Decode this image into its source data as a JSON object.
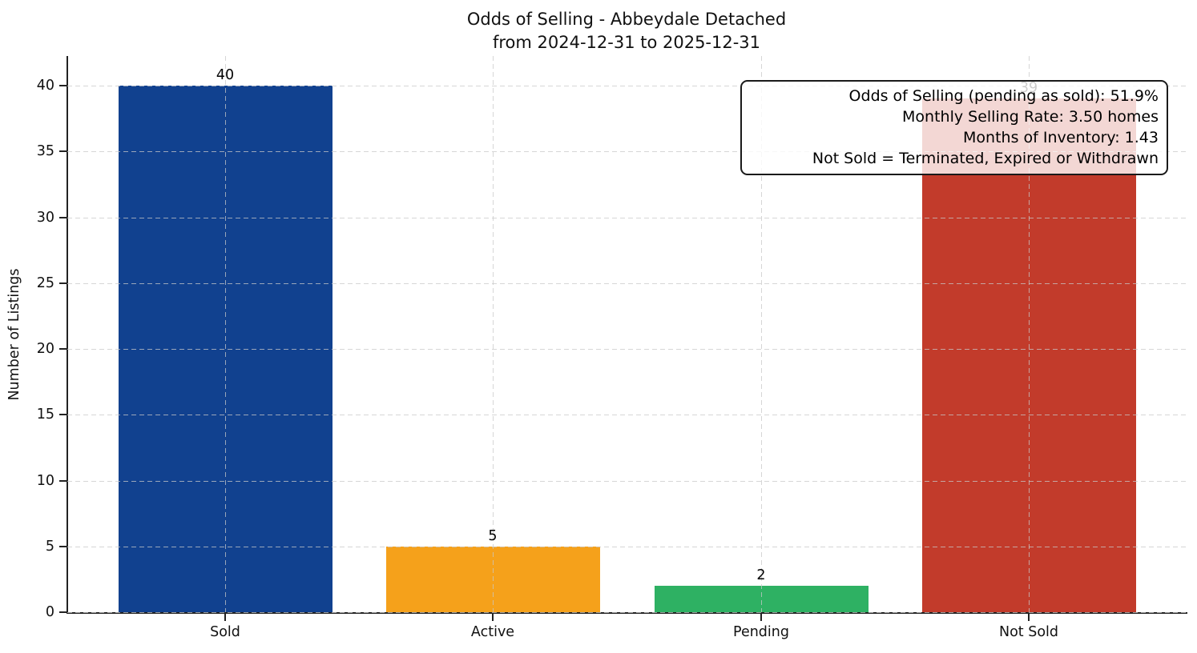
{
  "title": {
    "line1": "Odds of Selling - Abbeydale Detached",
    "line2": "from 2024-12-31 to 2025-12-31"
  },
  "chart_data": {
    "type": "bar",
    "categories": [
      "Sold",
      "Active",
      "Pending",
      "Not Sold"
    ],
    "values": [
      40,
      5,
      2,
      39
    ],
    "bar_labels": [
      "40",
      "5",
      "2",
      "39"
    ],
    "bar_colors": [
      "#11418F",
      "#F5A11B",
      "#2EB163",
      "#C23B2B"
    ],
    "title": "Odds of Selling - Abbeydale Detached from 2024-12-31 to 2025-12-31",
    "xlabel": "",
    "ylabel": "Number of Listings",
    "yticks": [
      0,
      5,
      10,
      15,
      20,
      25,
      30,
      35,
      40
    ],
    "ylim": [
      0,
      42.3
    ],
    "grid": "dashed, horizontal at each ytick and vertical at each category, drawn above bars",
    "legend_position": "none"
  },
  "annotation_box": {
    "lines": [
      "Odds of Selling (pending as sold): 51.9%",
      "Monthly Selling Rate: 3.50 homes",
      "Months of Inventory: 1.43",
      "Not Sold = Terminated, Expired or Withdrawn"
    ]
  }
}
